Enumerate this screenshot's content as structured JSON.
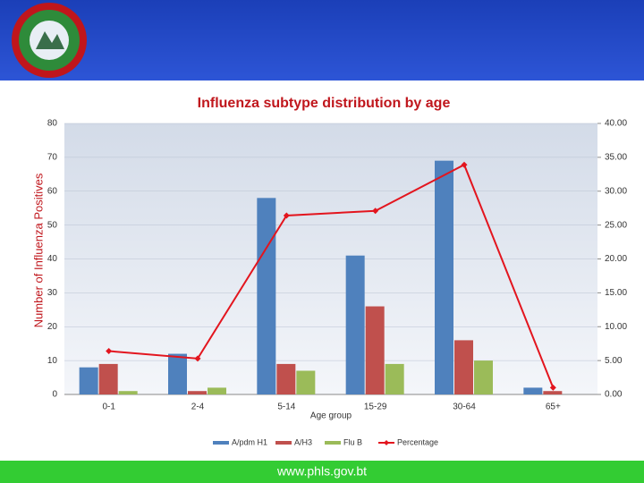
{
  "chart_data": {
    "type": "bar",
    "title": "Influenza subtype distribution by age",
    "xlabel": "Age group",
    "ylabel": "Number of Influenza Positives",
    "footer": "www.phls.gov.bt",
    "categories": [
      "0-1",
      "2-4",
      "5-14",
      "15-29",
      "30-64",
      "65+"
    ],
    "series": [
      {
        "name": "A/pdm H1",
        "color": "#4f81bd",
        "values": [
          8,
          12,
          58,
          41,
          69,
          2
        ]
      },
      {
        "name": "A/H3",
        "color": "#c0504d",
        "values": [
          9,
          1,
          9,
          26,
          16,
          1
        ]
      },
      {
        "name": "Flu B",
        "color": "#9bbb59",
        "values": [
          1,
          2,
          7,
          9,
          10,
          0
        ]
      },
      {
        "name": "Percentage",
        "color": "#e3151e",
        "type": "line",
        "axis": "y2",
        "values": [
          6.4,
          5.3,
          26.4,
          27.1,
          33.9,
          1
        ]
      }
    ],
    "ylim": [
      0,
      80
    ],
    "yticks": [
      0,
      10,
      20,
      30,
      40,
      50,
      60,
      70,
      80
    ],
    "y2lim": [
      0,
      40
    ],
    "y2ticks": [
      {
        "value": 0,
        "label": "0.00"
      },
      {
        "value": 5,
        "label": "5.00"
      },
      {
        "value": 10,
        "label": "10.00"
      },
      {
        "value": 15,
        "label": "15.00"
      },
      {
        "value": 20,
        "label": "20.00"
      },
      {
        "value": 25,
        "label": "25.00"
      },
      {
        "value": 30,
        "label": "30.00"
      },
      {
        "value": 35,
        "label": "35.00"
      },
      {
        "value": 40,
        "label": "40.00"
      }
    ],
    "grid": true,
    "legend": "bottom"
  }
}
